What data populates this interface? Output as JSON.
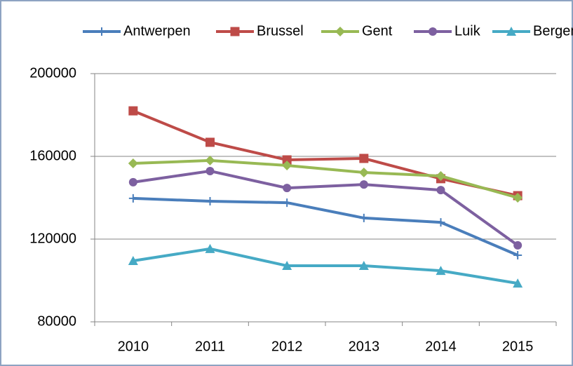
{
  "chart_data": {
    "type": "line",
    "categories": [
      "2010",
      "2011",
      "2012",
      "2013",
      "2014",
      "2015"
    ],
    "series": [
      {
        "name": "Antwerpen",
        "color": "#4a7ebb",
        "marker": "plus",
        "values": [
          139700,
          138300,
          137600,
          130200,
          128100,
          112200
        ]
      },
      {
        "name": "Brussel",
        "color": "#be4b48",
        "marker": "square",
        "values": [
          182000,
          166800,
          158300,
          159000,
          149200,
          141000
        ]
      },
      {
        "name": "Gent",
        "color": "#98b954",
        "marker": "diamond",
        "values": [
          156600,
          158000,
          155600,
          152200,
          150500,
          140000
        ]
      },
      {
        "name": "Luik",
        "color": "#7d60a0",
        "marker": "circle",
        "values": [
          147500,
          152900,
          144700,
          146400,
          143700,
          117000
        ]
      },
      {
        "name": "Bergen",
        "color": "#46aac5",
        "marker": "triangle",
        "values": [
          109500,
          115300,
          107100,
          107100,
          104700,
          98600
        ]
      }
    ],
    "ylim": [
      80000,
      200000
    ],
    "yticks": [
      80000,
      120000,
      160000,
      200000
    ],
    "grid": true,
    "legend": "top"
  }
}
